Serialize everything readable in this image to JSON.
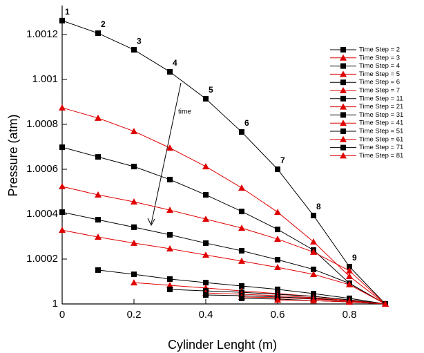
{
  "chart_data": {
    "type": "line",
    "x_label": "Cylinder Lenght (m)",
    "y_label": "Pressure (atm)",
    "annotation": "time",
    "point_labels": [
      "1",
      "2",
      "3",
      "4",
      "5",
      "6",
      "7",
      "8",
      "9"
    ],
    "x": [
      0,
      0.1,
      0.2,
      0.3,
      0.4,
      0.5,
      0.6,
      0.7,
      0.8,
      0.9
    ],
    "xlim": [
      0,
      0.9
    ],
    "xticks": [
      0,
      0.2,
      0.4,
      0.6,
      0.8
    ],
    "ylim": [
      1,
      1.00132
    ],
    "yticks": [
      1,
      1.0002,
      1.0004,
      1.0006,
      1.0008,
      1.001,
      1.0012
    ],
    "series": [
      {
        "name": "Time Step = 2",
        "color": "#000000",
        "marker": "square",
        "values": [
          1.001262,
          1.001206,
          1.001132,
          1.001034,
          1.000914,
          1.000766,
          1.0006,
          1.000394,
          1.000166,
          1
        ]
      },
      {
        "name": "Time Step = 3",
        "color": "#e00000",
        "marker": "triangle",
        "values": [
          1.000874,
          1.000828,
          1.000769,
          1.000695,
          1.000612,
          1.000517,
          1.000409,
          1.000277,
          1.000123,
          1
        ]
      },
      {
        "name": "Time Step = 4",
        "color": "#000000",
        "marker": "square",
        "values": [
          1.000698,
          1.000655,
          1.000612,
          1.000554,
          1.000486,
          1.000412,
          1.000332,
          1.00024,
          1.000092,
          1
        ]
      },
      {
        "name": "Time Step = 5",
        "color": "#e00000",
        "marker": "triangle",
        "values": [
          1.000523,
          1.000486,
          1.000455,
          1.000418,
          1.000378,
          1.000338,
          1.000289,
          1.000231,
          1.000148,
          1
        ]
      },
      {
        "name": "Time Step = 6",
        "color": "#000000",
        "marker": "square",
        "values": [
          1.000409,
          1.000375,
          1.000342,
          1.000308,
          1.000271,
          1.000237,
          1.000197,
          1.000154,
          1.000092,
          1
        ]
      },
      {
        "name": "Time Step = 7",
        "color": "#e00000",
        "marker": "triangle",
        "values": [
          1.000329,
          1.000298,
          1.000271,
          1.000246,
          1.000218,
          1.000191,
          1.000163,
          1.000132,
          1.000086,
          1
        ]
      },
      {
        "name": "Time Step = 11",
        "color": "#000000",
        "marker": "square",
        "values": [
          null,
          1.000151,
          1.000132,
          1.000111,
          1.000095,
          1.00008,
          1.000065,
          1.000046,
          1.000025,
          1
        ]
      },
      {
        "name": "Time Step = 21",
        "color": "#e00000",
        "marker": "triangle",
        "values": [
          null,
          null,
          1.000095,
          1.000083,
          1.000071,
          1.000058,
          1.000046,
          1.000034,
          1.000018,
          1
        ]
      },
      {
        "name": "Time Step = 31",
        "color": "#000000",
        "marker": "square",
        "values": [
          null,
          null,
          null,
          1.000065,
          1.000058,
          1.000052,
          1.000043,
          1.000034,
          1.000018,
          1
        ]
      },
      {
        "name": "Time Step = 41",
        "color": "#e00000",
        "marker": "triangle",
        "values": [
          null,
          null,
          null,
          null,
          1.000049,
          1.000043,
          1.000037,
          1.000028,
          1.000015,
          1
        ]
      },
      {
        "name": "Time Step = 51",
        "color": "#000000",
        "marker": "square",
        "values": [
          null,
          null,
          null,
          null,
          1.00004,
          1.000037,
          1.000031,
          1.000025,
          1.000012,
          1
        ]
      },
      {
        "name": "Time Step = 61",
        "color": "#e00000",
        "marker": "triangle",
        "values": [
          null,
          null,
          null,
          null,
          null,
          1.000031,
          1.000028,
          1.000022,
          1.000012,
          1
        ]
      },
      {
        "name": "Time Step = 71",
        "color": "#000000",
        "marker": "square",
        "values": [
          null,
          null,
          null,
          null,
          null,
          1.000025,
          1.000022,
          1.000015,
          1.000009,
          1
        ]
      },
      {
        "name": "Time Step = 81",
        "color": "#e00000",
        "marker": "triangle",
        "values": [
          null,
          null,
          null,
          null,
          null,
          null,
          1.000018,
          1.000015,
          1.000009,
          1
        ]
      }
    ]
  }
}
